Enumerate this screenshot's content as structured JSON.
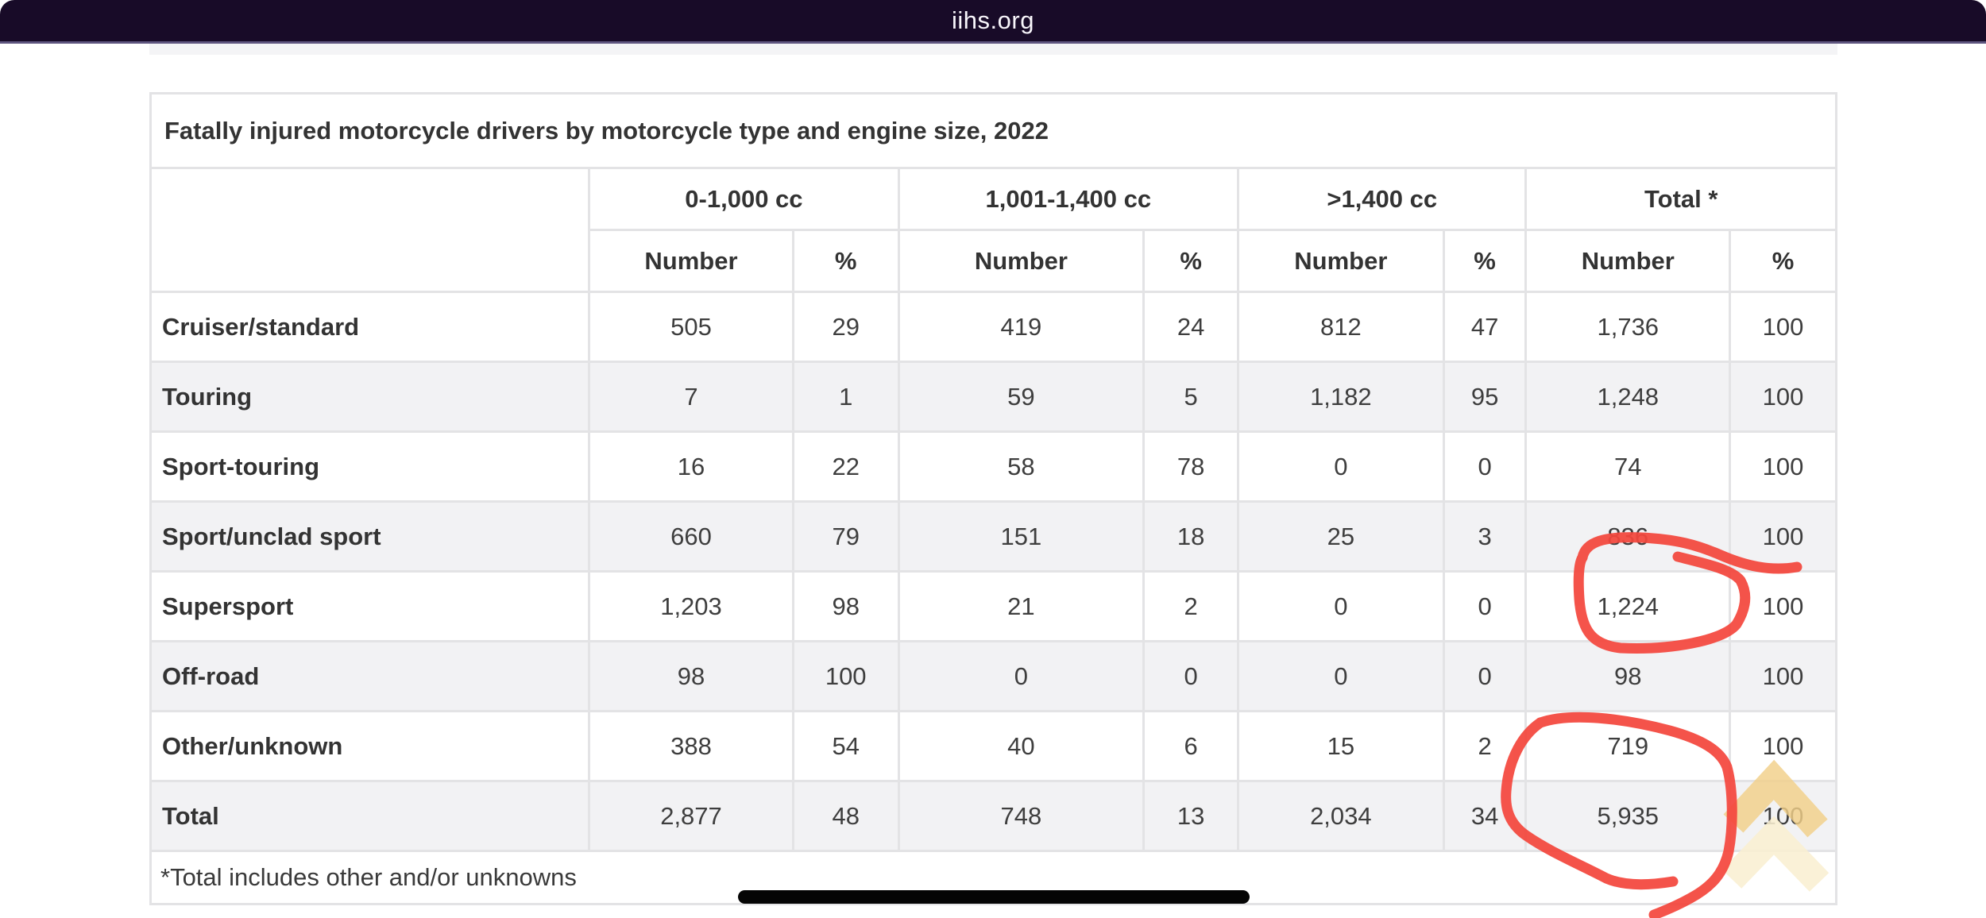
{
  "browser": {
    "address_text": "iihs.org"
  },
  "page": {
    "table": {
      "title": "Fatally injured motorcycle drivers by motorcycle type and engine size, 2022",
      "column_groups": [
        {
          "label": "0-1,000 cc",
          "sub": [
            "Number",
            "%"
          ]
        },
        {
          "label": "1,001-1,400 cc",
          "sub": [
            "Number",
            "%"
          ]
        },
        {
          "label": ">1,400 cc",
          "sub": [
            "Number",
            "%"
          ]
        },
        {
          "label": "Total *",
          "sub": [
            "Number",
            "%"
          ]
        }
      ],
      "rows": [
        {
          "label": "Cruiser/standard",
          "values": [
            "505",
            "29",
            "419",
            "24",
            "812",
            "47",
            "1,736",
            "100"
          ]
        },
        {
          "label": "Touring",
          "values": [
            "7",
            "1",
            "59",
            "5",
            "1,182",
            "95",
            "1,248",
            "100"
          ]
        },
        {
          "label": "Sport-touring",
          "values": [
            "16",
            "22",
            "58",
            "78",
            "0",
            "0",
            "74",
            "100"
          ]
        },
        {
          "label": "Sport/unclad sport",
          "values": [
            "660",
            "79",
            "151",
            "18",
            "25",
            "3",
            "836",
            "100"
          ]
        },
        {
          "label": "Supersport",
          "values": [
            "1,203",
            "98",
            "21",
            "2",
            "0",
            "0",
            "1,224",
            "100"
          ]
        },
        {
          "label": "Off-road",
          "values": [
            "98",
            "100",
            "0",
            "0",
            "0",
            "0",
            "98",
            "100"
          ]
        },
        {
          "label": "Other/unknown",
          "values": [
            "388",
            "54",
            "40",
            "6",
            "15",
            "2",
            "719",
            "100"
          ]
        },
        {
          "label": "Total",
          "values": [
            "2,877",
            "48",
            "748",
            "13",
            "2,034",
            "34",
            "5,935",
            "100"
          ]
        }
      ],
      "footnote": "*Total includes other and/or unknowns"
    },
    "annotations": {
      "style": "hand-drawn red circles",
      "color": "#f4473d",
      "circled_values": [
        "1,224",
        "5,935"
      ]
    },
    "icons": {
      "scroll_to_top": "double-chevron-up",
      "chevron_color": "#f1d089",
      "chevron_color_light": "#f9efd2"
    },
    "colors": {
      "navbar_bg": "#180b28",
      "navbar_divider": "#5f5680",
      "row_stripe": "#f2f2f4",
      "table_border": "#e3e3e5",
      "text": "#333333"
    }
  }
}
